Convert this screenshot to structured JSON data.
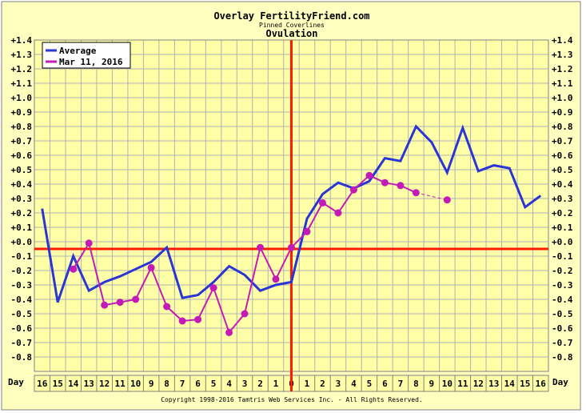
{
  "chart_data": {
    "type": "line",
    "title": "Overlay FertilityFriend.com",
    "subtitle": "Pinned Coverlines",
    "title2": "Ovulation",
    "x_label": "Day",
    "x_tick_labels": [
      "16",
      "15",
      "14",
      "13",
      "12",
      "11",
      "10",
      "9",
      "8",
      "7",
      "6",
      "5",
      "4",
      "3",
      "2",
      "1",
      "0",
      "1",
      "2",
      "3",
      "4",
      "5",
      "6",
      "7",
      "8",
      "9",
      "10",
      "11",
      "12",
      "13",
      "14",
      "15",
      "16"
    ],
    "x": [
      -16,
      -15,
      -14,
      -13,
      -12,
      -11,
      -10,
      -9,
      -8,
      -7,
      -6,
      -5,
      -4,
      -3,
      -2,
      -1,
      0,
      1,
      2,
      3,
      4,
      5,
      6,
      7,
      8,
      9,
      10,
      11,
      12,
      13,
      14,
      15,
      16
    ],
    "y_tick_labels": [
      "+1.4",
      "+1.3",
      "+1.2",
      "+1.1",
      "+1.0",
      "+0.9",
      "+0.8",
      "+0.7",
      "+0.6",
      "+0.5",
      "+0.4",
      "+0.3",
      "+0.2",
      "+0.1",
      "+0.0",
      "-0.1",
      "-0.2",
      "-0.3",
      "-0.4",
      "-0.5",
      "-0.6",
      "-0.7",
      "-0.8"
    ],
    "ylim": [
      -0.9,
      1.4
    ],
    "xlim": [
      -16,
      16
    ],
    "grid": true,
    "legend_position": "top-left",
    "horizontal_coverline_y": -0.05,
    "vertical_line_x": 0,
    "series": [
      {
        "name": "Average",
        "color": "#2a35d6",
        "markers": false,
        "x": [
          -16,
          -15,
          -14,
          -13,
          -12,
          -11,
          -10,
          -9,
          -8,
          -7,
          -6,
          -5,
          -4,
          -3,
          -2,
          -1,
          0,
          1,
          2,
          3,
          4,
          5,
          6,
          7,
          8,
          9,
          10,
          11,
          12,
          13,
          14,
          15,
          16
        ],
        "y": [
          0.23,
          -0.42,
          -0.1,
          -0.34,
          -0.28,
          -0.24,
          -0.19,
          -0.14,
          -0.04,
          -0.39,
          -0.37,
          -0.28,
          -0.17,
          -0.23,
          -0.34,
          -0.3,
          -0.28,
          0.16,
          0.33,
          0.41,
          0.37,
          0.42,
          0.58,
          0.56,
          0.8,
          0.69,
          0.48,
          0.79,
          0.49,
          0.53,
          0.51,
          0.24,
          0.32
        ]
      },
      {
        "name": "Mar 11, 2016",
        "color": "#c41ab8",
        "markers": true,
        "x": [
          -14,
          -13,
          -12,
          -11,
          -10,
          -9,
          -8,
          -7,
          -6,
          -5,
          -4,
          -3,
          -2,
          -1,
          0,
          1,
          2,
          3,
          4,
          5,
          6,
          7,
          8
        ],
        "y": [
          -0.19,
          -0.01,
          -0.44,
          -0.42,
          -0.4,
          -0.18,
          -0.45,
          -0.55,
          -0.54,
          -0.32,
          -0.63,
          -0.5,
          -0.04,
          -0.26,
          -0.04,
          0.07,
          0.27,
          0.2,
          0.36,
          0.46,
          0.41,
          0.39,
          0.34
        ],
        "dashed_tail": {
          "x": [
            8,
            10
          ],
          "y": [
            0.34,
            0.29
          ]
        },
        "tail_marker": {
          "x": 10,
          "y": 0.29
        }
      }
    ]
  },
  "copyright": "Copyright 1998-2016 Tamtris Web Services Inc. - All Rights Reserved.",
  "colors": {
    "page_bg": "#ffffff",
    "chart_bg": "#ffffc0",
    "plot_bg": "#ffffa8",
    "grid": "#b2b2b2",
    "coverline": "#ff1a00",
    "border": "#000000"
  }
}
